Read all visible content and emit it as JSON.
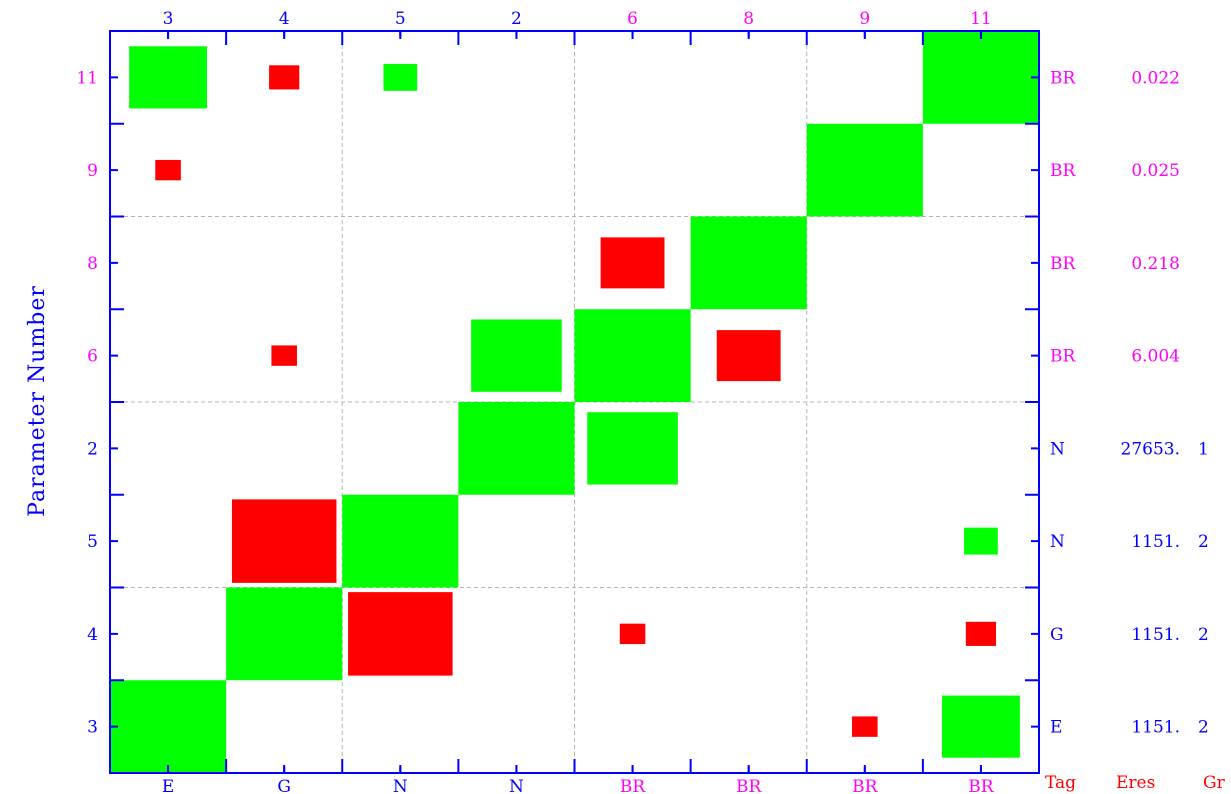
{
  "chart_data": {
    "type": "heatmap",
    "ylabel": "Parameter Number",
    "x_params": [
      "3",
      "4",
      "5",
      "2",
      "6",
      "8",
      "9",
      "11"
    ],
    "x_tags": [
      "E",
      "G",
      "N",
      "N",
      "BR",
      "BR",
      "BR",
      "BR"
    ],
    "y_params": [
      "3",
      "4",
      "5",
      "2",
      "6",
      "8",
      "9",
      "11"
    ],
    "row_tags": [
      "E",
      "G",
      "N",
      "N",
      "BR",
      "BR",
      "BR",
      "BR"
    ],
    "row_eres": [
      "1151.",
      "1151.",
      "1151.",
      "27653.",
      "6.004",
      "0.218",
      "0.025",
      "0.022"
    ],
    "row_groups": [
      "2",
      "2",
      "2",
      "1",
      "",
      "",
      "",
      ""
    ],
    "footer": {
      "tag": "Tag",
      "eres": "Eres",
      "group": "Gr"
    },
    "colors": {
      "positive": "#00ff00",
      "negative": "#ff0000",
      "axis": "#0000ff",
      "tag_br": "#ff00ff",
      "footer": "#ff0000",
      "grid": "#b4b4b4"
    },
    "cells": [
      {
        "col": 0,
        "row": 0,
        "sign": "+",
        "size": 1.0
      },
      {
        "col": 1,
        "row": 1,
        "sign": "+",
        "size": 1.0
      },
      {
        "col": 2,
        "row": 2,
        "sign": "+",
        "size": 1.0
      },
      {
        "col": 3,
        "row": 3,
        "sign": "+",
        "size": 1.0
      },
      {
        "col": 4,
        "row": 4,
        "sign": "+",
        "size": 1.0
      },
      {
        "col": 5,
        "row": 5,
        "sign": "+",
        "size": 1.0
      },
      {
        "col": 6,
        "row": 6,
        "sign": "+",
        "size": 1.0
      },
      {
        "col": 7,
        "row": 7,
        "sign": "+",
        "size": 1.0
      },
      {
        "col": 2,
        "row": 1,
        "sign": "-",
        "size": 0.9
      },
      {
        "col": 1,
        "row": 2,
        "sign": "-",
        "size": 0.9
      },
      {
        "col": 4,
        "row": 3,
        "sign": "+",
        "size": 0.78
      },
      {
        "col": 3,
        "row": 4,
        "sign": "+",
        "size": 0.78
      },
      {
        "col": 5,
        "row": 4,
        "sign": "-",
        "size": 0.55
      },
      {
        "col": 4,
        "row": 5,
        "sign": "-",
        "size": 0.55
      },
      {
        "col": 7,
        "row": 0,
        "sign": "+",
        "size": 0.67
      },
      {
        "col": 0,
        "row": 7,
        "sign": "+",
        "size": 0.67
      },
      {
        "col": 6,
        "row": 0,
        "sign": "-",
        "size": 0.22
      },
      {
        "col": 7,
        "row": 1,
        "sign": "-",
        "size": 0.26
      },
      {
        "col": 4,
        "row": 1,
        "sign": "-",
        "size": 0.22
      },
      {
        "col": 7,
        "row": 2,
        "sign": "+",
        "size": 0.29
      },
      {
        "col": 1,
        "row": 4,
        "sign": "-",
        "size": 0.22
      },
      {
        "col": 0,
        "row": 6,
        "sign": "-",
        "size": 0.22
      },
      {
        "col": 1,
        "row": 7,
        "sign": "-",
        "size": 0.26
      },
      {
        "col": 2,
        "row": 7,
        "sign": "+",
        "size": 0.29
      }
    ]
  }
}
